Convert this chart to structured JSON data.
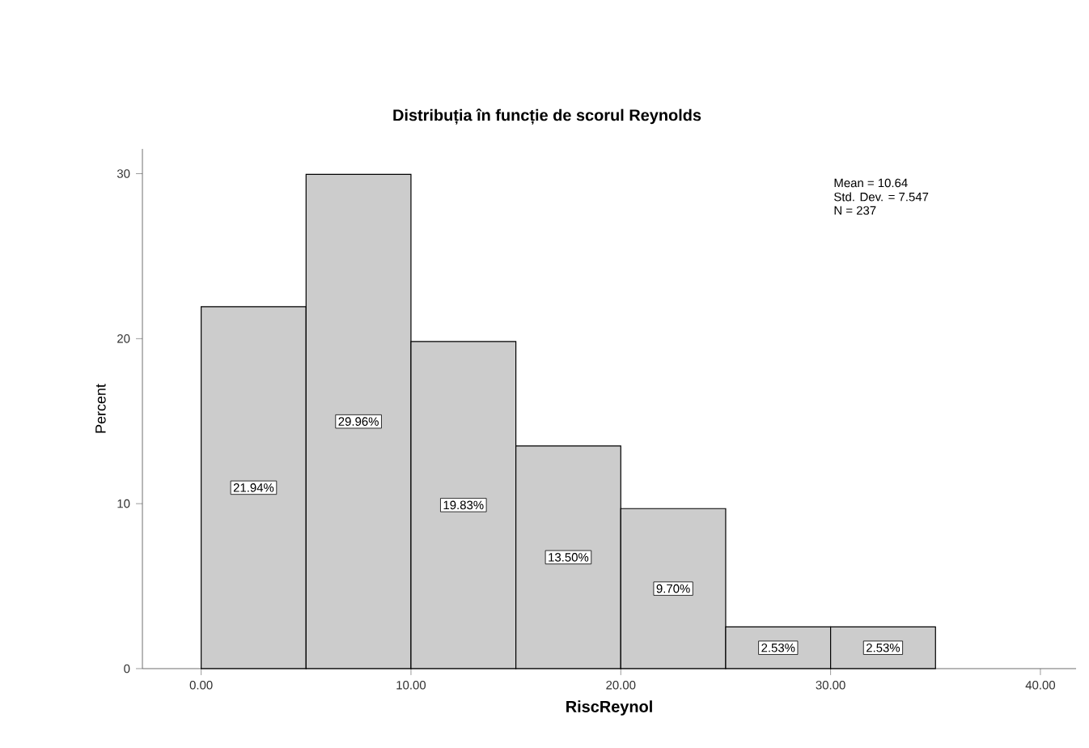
{
  "chart_data": {
    "type": "histogram",
    "title": "Distribuția în funcție de scorul Reynolds",
    "xlabel": "RiscReynol",
    "ylabel": "Percent",
    "bins": [
      0,
      5,
      10,
      15,
      20,
      25,
      30,
      35
    ],
    "values": [
      21.94,
      29.96,
      19.83,
      13.5,
      9.7,
      2.53,
      2.53
    ],
    "value_labels": [
      "21.94%",
      "29.96%",
      "19.83%",
      "13.50%",
      "9.70%",
      "2.53%",
      "2.53%"
    ],
    "color": "#cccccc",
    "xlim": [
      -2.8,
      41.7
    ],
    "ylim": [
      0,
      31.5
    ],
    "xticks": [
      {
        "value": 0,
        "label": "0.00"
      },
      {
        "value": 10,
        "label": "10.00"
      },
      {
        "value": 20,
        "label": "20.00"
      },
      {
        "value": 30,
        "label": "30.00"
      },
      {
        "value": 40,
        "label": "40.00"
      }
    ],
    "yticks": [
      0,
      10,
      20,
      30
    ],
    "grid": false,
    "annotations": [
      "Mean = 10.64",
      "Std. Dev. = 7.547",
      "N = 237"
    ]
  }
}
